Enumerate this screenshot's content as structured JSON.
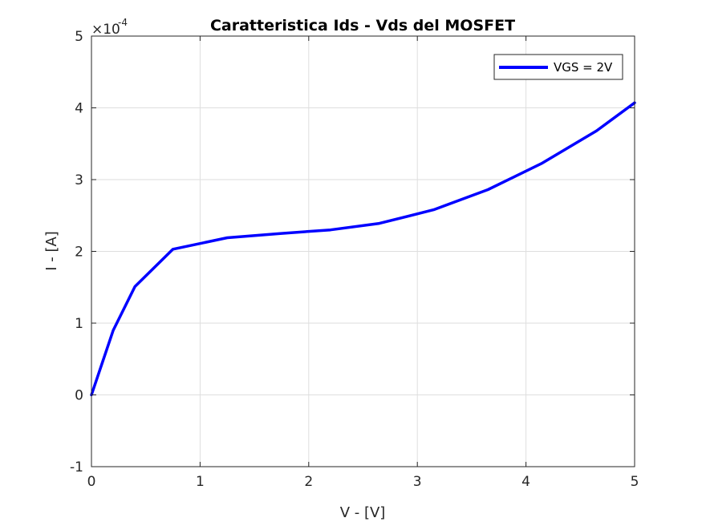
{
  "chart_data": {
    "type": "line",
    "title": "Caratteristica Ids - Vds del MOSFET",
    "xlabel": "V - [V]",
    "ylabel": "I - [A]",
    "xlim": [
      0,
      5
    ],
    "ylim": [
      -1,
      5
    ],
    "y_multiplier": "×10",
    "y_multiplier_exponent": "-4",
    "x_ticks": [
      "0",
      "1",
      "2",
      "3",
      "4",
      "5"
    ],
    "y_ticks": [
      "-1",
      "0",
      "1",
      "2",
      "3",
      "4",
      "5"
    ],
    "grid": true,
    "legend_position": "top-right",
    "series": [
      {
        "name": "VGS = 2V",
        "color": "#0000ff",
        "x": [
          0,
          0.2,
          0.4,
          0.75,
          1.25,
          1.75,
          2.2,
          2.65,
          3.15,
          3.65,
          4.15,
          4.65,
          5.0
        ],
        "y": [
          0,
          0.9,
          1.51,
          2.03,
          2.19,
          2.25,
          2.3,
          2.39,
          2.58,
          2.86,
          3.23,
          3.68,
          4.07
        ]
      }
    ]
  }
}
